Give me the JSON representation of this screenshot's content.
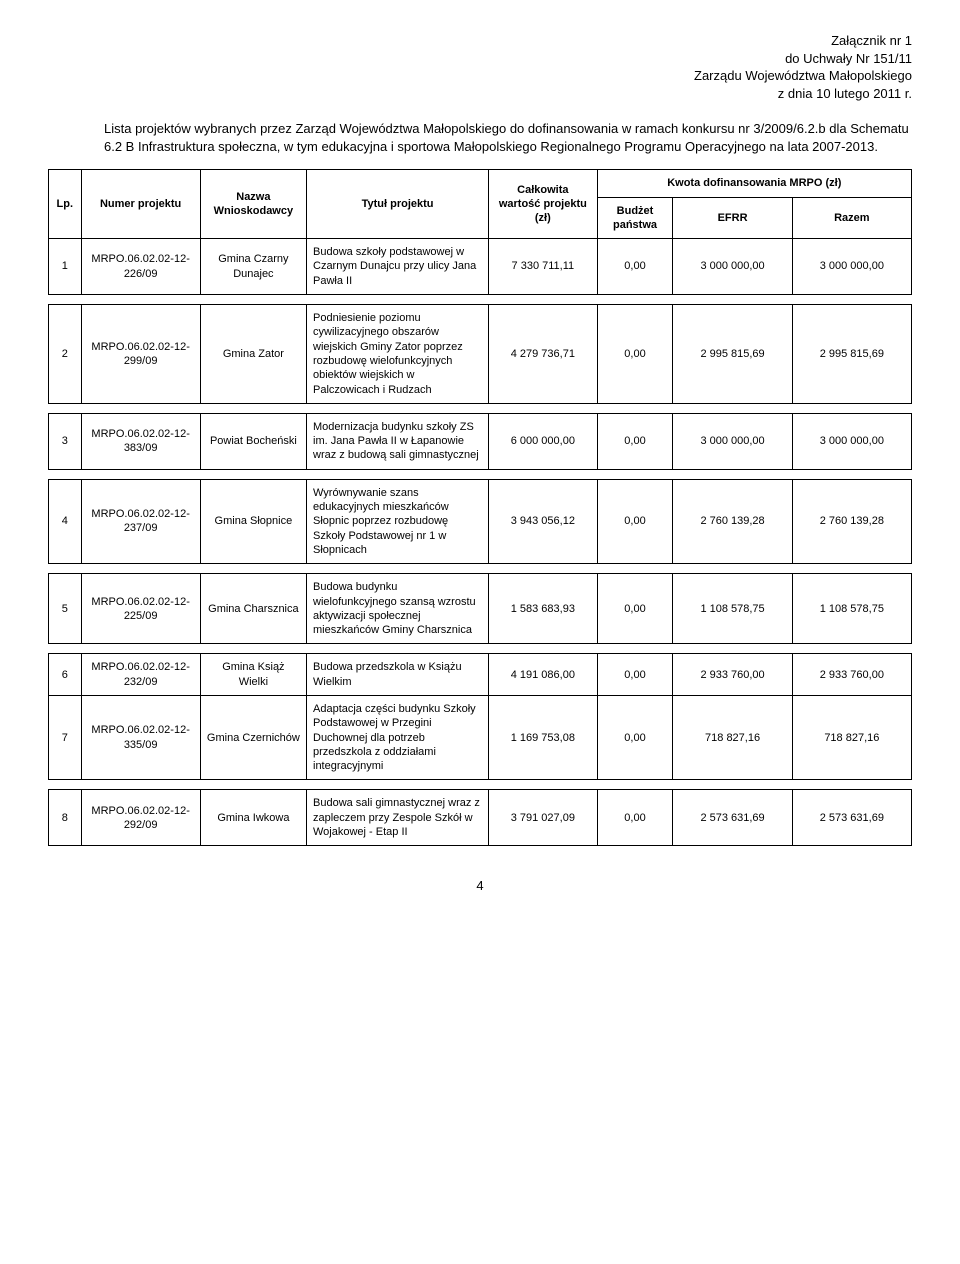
{
  "header": {
    "line1": "Załącznik nr 1",
    "line2": "do Uchwały Nr 151/11",
    "line3": "Zarządu Województwa Małopolskiego",
    "line4": "z dnia 10 lutego 2011 r."
  },
  "intro": "Lista projektów wybranych przez Zarząd Województwa Małopolskiego do dofinansowania w ramach konkursu nr 3/2009/6.2.b dla Schematu 6.2 B Infrastruktura społeczna, w tym edukacyjna i sportowa Małopolskiego Regionalnego Programu Operacyjnego na lata 2007-2013.",
  "columns": {
    "lp": "Lp.",
    "num": "Numer projektu",
    "wn": "Nazwa Wnioskodawcy",
    "title": "Tytuł projektu",
    "val": "Całkowita wartość projektu (zł)",
    "kwota": "Kwota dofinansowania MRPO (zł)",
    "bud": "Budżet państwa",
    "efrr": "EFRR",
    "razem": "Razem"
  },
  "rows": [
    {
      "lp": "1",
      "num": "MRPO.06.02.02-12-226/09",
      "wn": "Gmina Czarny Dunajec",
      "title": "Budowa szkoły podstawowej w Czarnym Dunajcu przy ulicy Jana Pawła II",
      "val": "7 330 711,11",
      "bud": "0,00",
      "efrr": "3 000 000,00",
      "razem": "3 000 000,00"
    },
    {
      "lp": "2",
      "num": "MRPO.06.02.02-12-299/09",
      "wn": "Gmina Zator",
      "title": "Podniesienie poziomu cywilizacyjnego obszarów wiejskich Gminy Zator poprzez rozbudowę wielofunkcyjnych obiektów wiejskich w Palczowicach i Rudzach",
      "val": "4 279 736,71",
      "bud": "0,00",
      "efrr": "2 995 815,69",
      "razem": "2 995 815,69"
    },
    {
      "lp": "3",
      "num": "MRPO.06.02.02-12-383/09",
      "wn": "Powiat Bocheński",
      "title": "Modernizacja budynku szkoły ZS im. Jana Pawła II w Łapanowie wraz z budową sali gimnastycznej",
      "val": "6 000 000,00",
      "bud": "0,00",
      "efrr": "3 000 000,00",
      "razem": "3 000 000,00"
    },
    {
      "lp": "4",
      "num": "MRPO.06.02.02-12-237/09",
      "wn": "Gmina Słopnice",
      "title": "Wyrównywanie szans edukacyjnych mieszkańców Słopnic poprzez rozbudowę Szkoły Podstawowej nr 1 w Słopnicach",
      "val": "3 943 056,12",
      "bud": "0,00",
      "efrr": "2 760 139,28",
      "razem": "2 760 139,28"
    },
    {
      "lp": "5",
      "num": "MRPO.06.02.02-12-225/09",
      "wn": "Gmina Charsznica",
      "title": "Budowa budynku wielofunkcyjnego szansą wzrostu aktywizacji społecznej mieszkańców Gminy Charsznica",
      "val": "1 583 683,93",
      "bud": "0,00",
      "efrr": "1 108 578,75",
      "razem": "1 108 578,75"
    },
    {
      "lp": "6",
      "num": "MRPO.06.02.02-12-232/09",
      "wn": "Gmina Książ Wielki",
      "title": "Budowa przedszkola w Książu Wielkim",
      "val": "4 191 086,00",
      "bud": "0,00",
      "efrr": "2 933 760,00",
      "razem": "2 933 760,00"
    },
    {
      "lp": "7",
      "num": "MRPO.06.02.02-12-335/09",
      "wn": "Gmina Czernichów",
      "title": "Adaptacja części budynku Szkoły Podstawowej w Przegini Duchownej dla potrzeb przedszkola z oddziałami integracyjnymi",
      "val": "1 169 753,08",
      "bud": "0,00",
      "efrr": "718 827,16",
      "razem": "718 827,16"
    },
    {
      "lp": "8",
      "num": "MRPO.06.02.02-12-292/09",
      "wn": "Gmina Iwkowa",
      "title": "Budowa sali gimnastycznej wraz z zapleczem przy Zespole Szkół w Wojakowej - Etap II",
      "val": "3 791 027,09",
      "bud": "0,00",
      "efrr": "2 573 631,69",
      "razem": "2 573 631,69"
    }
  ],
  "spacer_after": [
    0,
    1,
    2,
    3,
    4,
    6
  ],
  "page_number": "4"
}
